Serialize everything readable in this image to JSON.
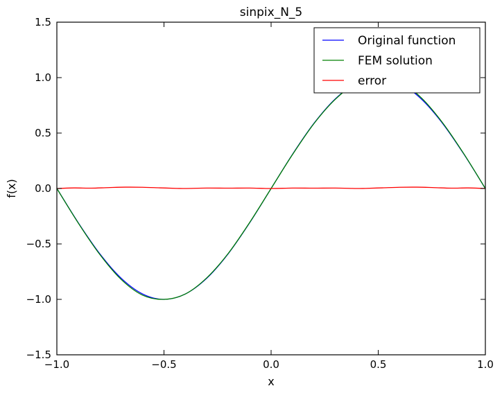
{
  "chart_data": {
    "type": "line",
    "title": "sinpix_N_5",
    "xlabel": "x",
    "ylabel": "f(x)",
    "xlim": [
      -1.0,
      1.0
    ],
    "ylim": [
      -1.5,
      1.5
    ],
    "xticks": [
      -1.0,
      -0.5,
      0.0,
      0.5,
      1.0
    ],
    "xtick_labels": [
      "−1.0",
      "−0.5",
      "0.0",
      "0.5",
      "1.0"
    ],
    "yticks": [
      -1.5,
      -1.0,
      -0.5,
      0.0,
      0.5,
      1.0,
      1.5
    ],
    "ytick_labels": [
      "−1.5",
      "−1.0",
      "−0.5",
      "0.0",
      "0.5",
      "1.0",
      "1.5"
    ],
    "grid": false,
    "legend_position": "top-right",
    "series": [
      {
        "name": "Original function",
        "color": "#0000ff",
        "x": [
          -1.0,
          -0.9,
          -0.8,
          -0.7,
          -0.6,
          -0.5,
          -0.4,
          -0.3,
          -0.2,
          -0.1,
          0.0,
          0.1,
          0.2,
          0.3,
          0.4,
          0.5,
          0.6,
          0.7,
          0.8,
          0.9,
          1.0
        ],
        "y": [
          0.0,
          -0.309,
          -0.588,
          -0.809,
          -0.951,
          -1.0,
          -0.951,
          -0.809,
          -0.588,
          -0.309,
          0.0,
          0.309,
          0.588,
          0.809,
          0.951,
          1.0,
          0.951,
          0.809,
          0.588,
          0.309,
          0.0
        ]
      },
      {
        "name": "FEM solution",
        "color": "#008000",
        "x": [
          -1.0,
          -0.9,
          -0.8,
          -0.7,
          -0.6,
          -0.5,
          -0.4,
          -0.3,
          -0.2,
          -0.1,
          0.0,
          0.1,
          0.2,
          0.3,
          0.4,
          0.5,
          0.6,
          0.7,
          0.8,
          0.9,
          1.0
        ],
        "y": [
          0.0,
          -0.312,
          -0.594,
          -0.82,
          -0.962,
          -1.0,
          -0.951,
          -0.805,
          -0.585,
          -0.306,
          0.0,
          0.306,
          0.585,
          0.805,
          0.951,
          1.0,
          0.962,
          0.82,
          0.594,
          0.312,
          0.0
        ]
      },
      {
        "name": "error",
        "color": "#ff0000",
        "x": [
          -1.0,
          -0.92,
          -0.84,
          -0.76,
          -0.68,
          -0.6,
          -0.52,
          -0.44,
          -0.4,
          -0.3,
          -0.2,
          -0.1,
          0.0,
          0.1,
          0.2,
          0.3,
          0.4,
          0.44,
          0.52,
          0.6,
          0.68,
          0.76,
          0.84,
          0.92,
          1.0
        ],
        "y": [
          0.0,
          0.005,
          0.003,
          0.008,
          0.012,
          0.011,
          0.006,
          0.001,
          0.0,
          0.004,
          0.003,
          0.004,
          0.0,
          0.004,
          0.003,
          0.004,
          0.0,
          0.001,
          0.006,
          0.011,
          0.012,
          0.008,
          0.003,
          0.005,
          0.0
        ]
      }
    ]
  }
}
